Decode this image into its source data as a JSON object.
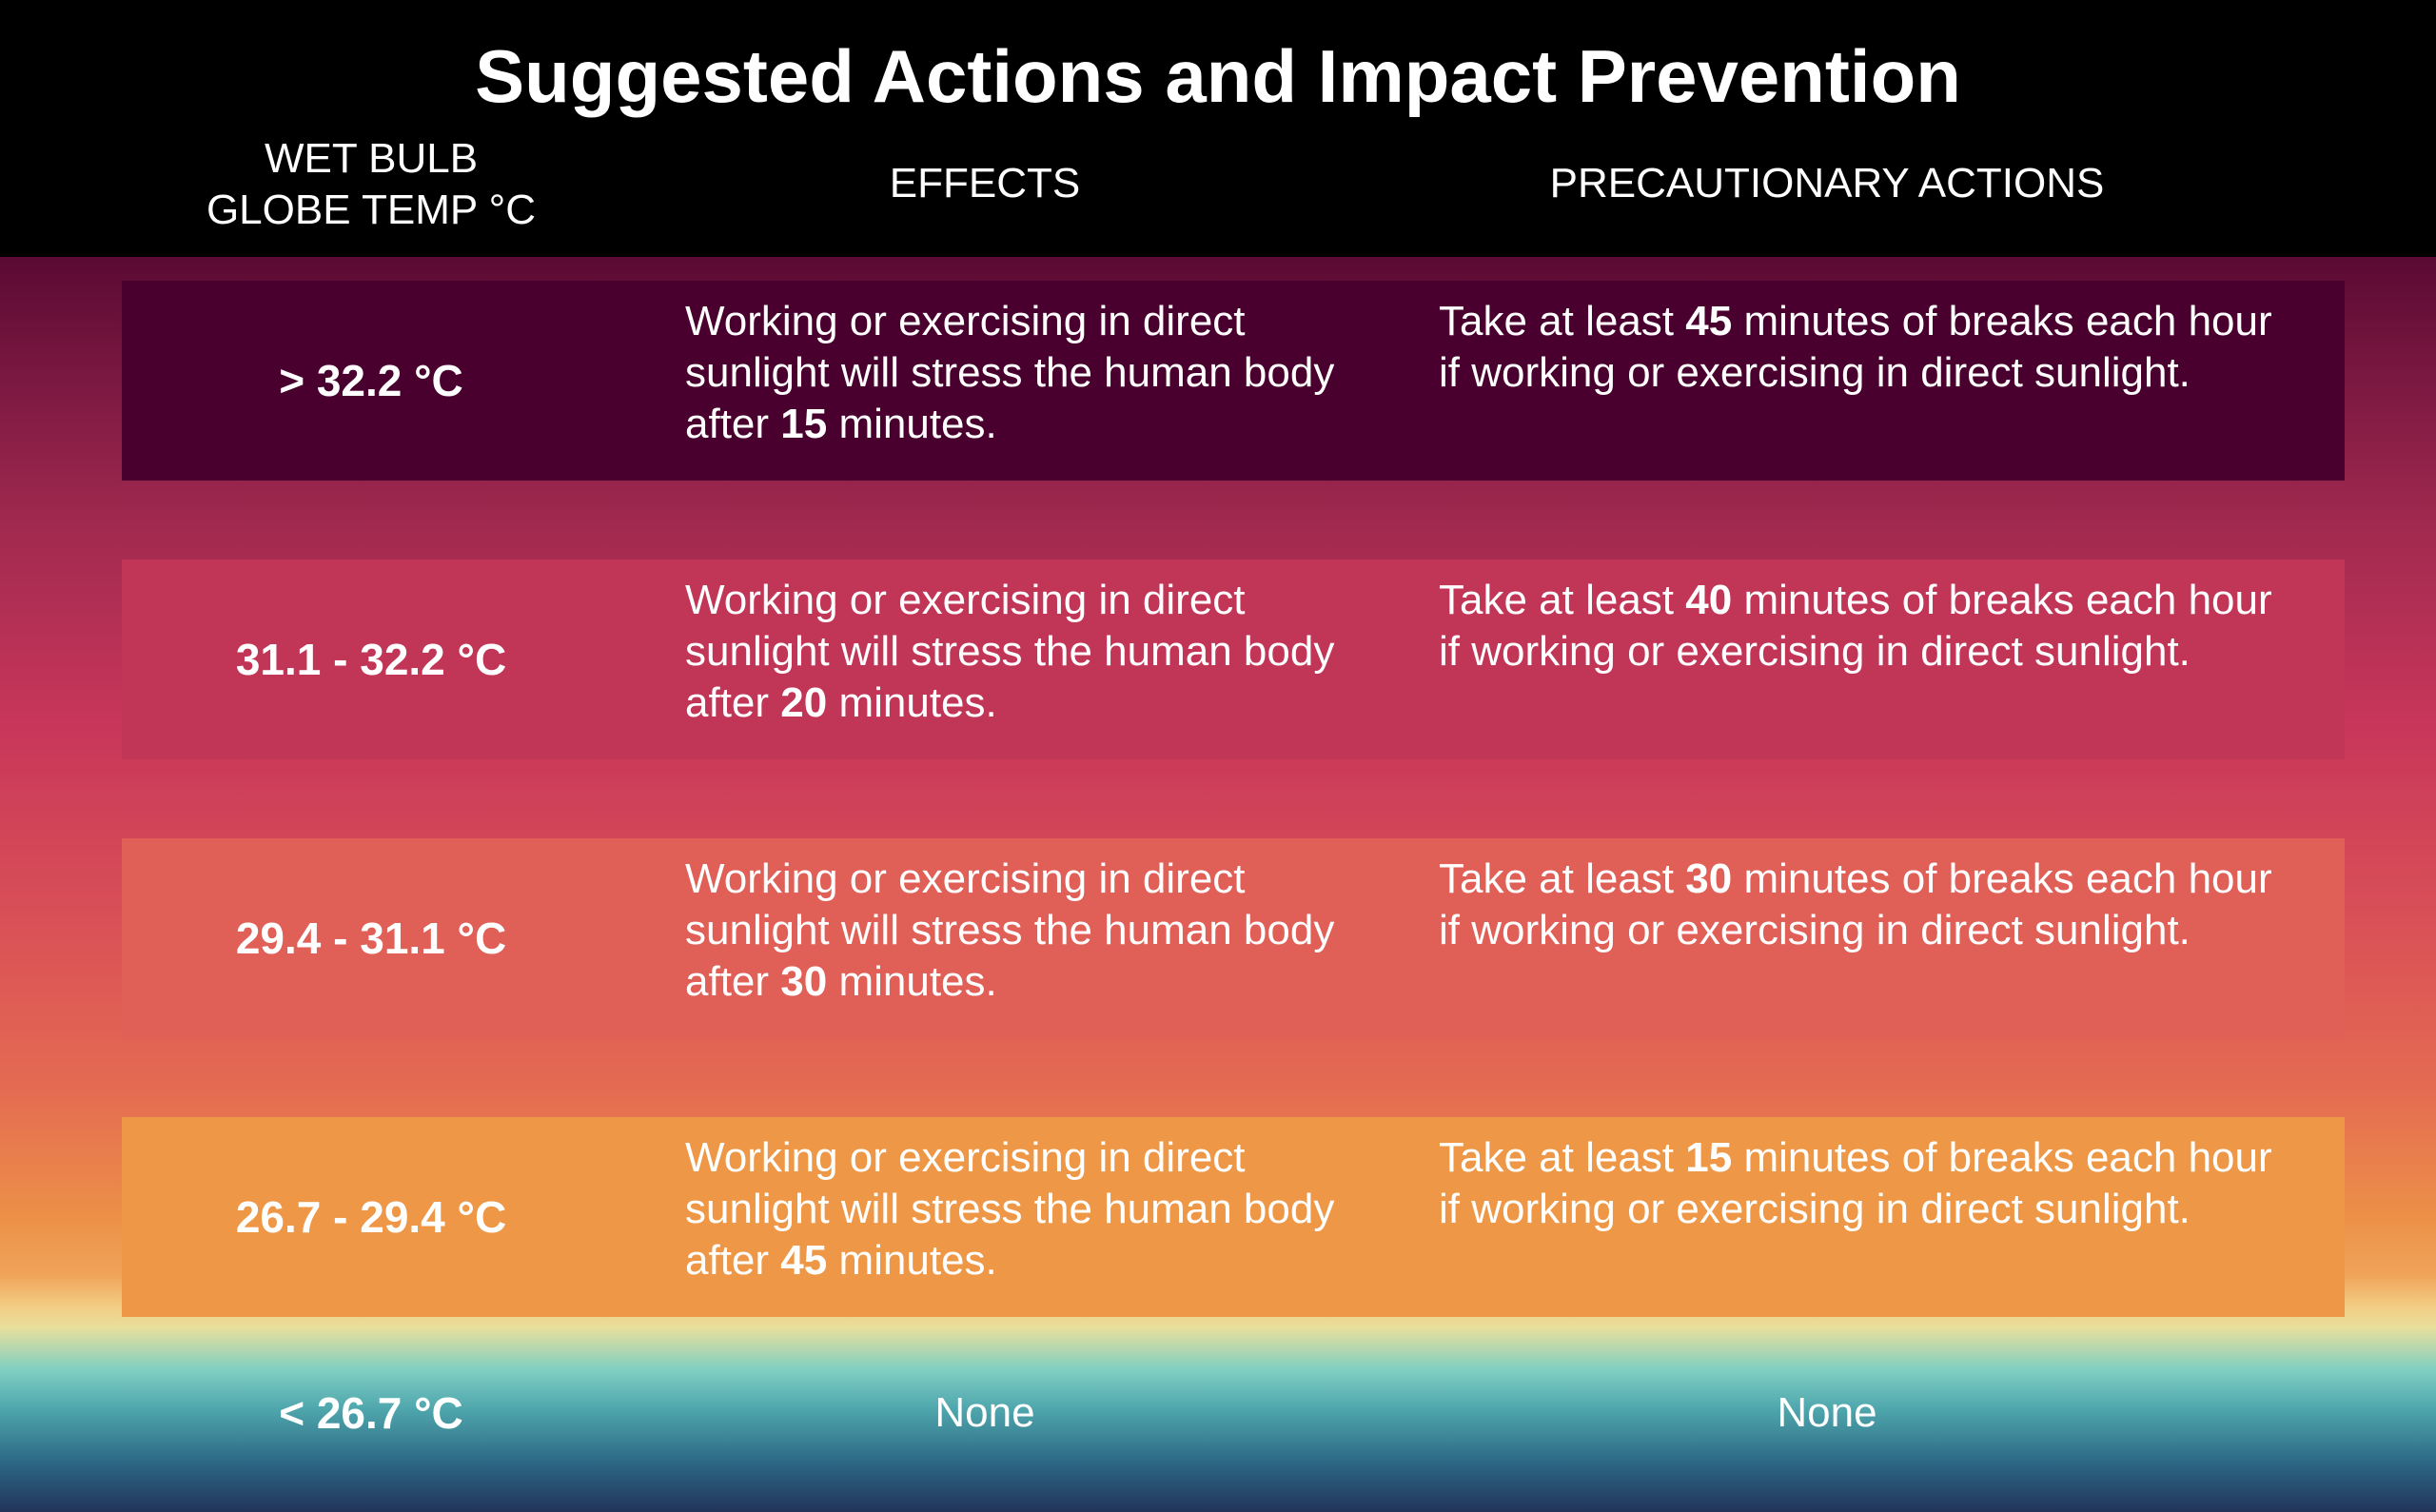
{
  "title": "Suggested Actions and Impact Prevention",
  "columns": {
    "wbgt": "WET BULB\nGLOBE TEMP °C",
    "effects": "EFFECTS",
    "actions": "PRECAUTIONARY ACTIONS"
  },
  "rows": [
    {
      "temp": "> 32.2 °C",
      "effect_pre": "Working or exercising in direct sunlight will stress the human body after ",
      "effect_num": "15",
      "effect_post": " minutes.",
      "action_pre": "Take at least ",
      "action_num": "45",
      "action_post": " minutes of breaks each hour if working or exercising in direct sunlight.",
      "color": "#49002f"
    },
    {
      "temp": "31.1 - 32.2 °C",
      "effect_pre": "Working or exercising in direct sunlight will stress the human body after ",
      "effect_num": "20",
      "effect_post": " minutes.",
      "action_pre": "Take at least ",
      "action_num": "40",
      "action_post": " minutes of breaks each hour if working or exercising in direct sunlight.",
      "color": "#c13557"
    },
    {
      "temp": "29.4 - 31.1 °C",
      "effect_pre": "Working or exercising in direct sunlight will stress the human body after ",
      "effect_num": "30",
      "effect_post": " minutes.",
      "action_pre": "Take at least ",
      "action_num": "30",
      "action_post": " minutes of breaks each hour if working or exercising in direct sunlight.",
      "color": "#e05f56"
    },
    {
      "temp": "26.7 - 29.4 °C",
      "effect_pre": "Working or exercising in direct sunlight will stress the human body after ",
      "effect_num": "45",
      "effect_post": " minutes.",
      "action_pre": "Take at least ",
      "action_num": "15",
      "action_post": " minutes of breaks each hour if working or exercising in direct sunlight.",
      "color": "#ee9847"
    }
  ],
  "last_row": {
    "temp": "< 26.7 °C",
    "effect": "None",
    "action": "None"
  }
}
